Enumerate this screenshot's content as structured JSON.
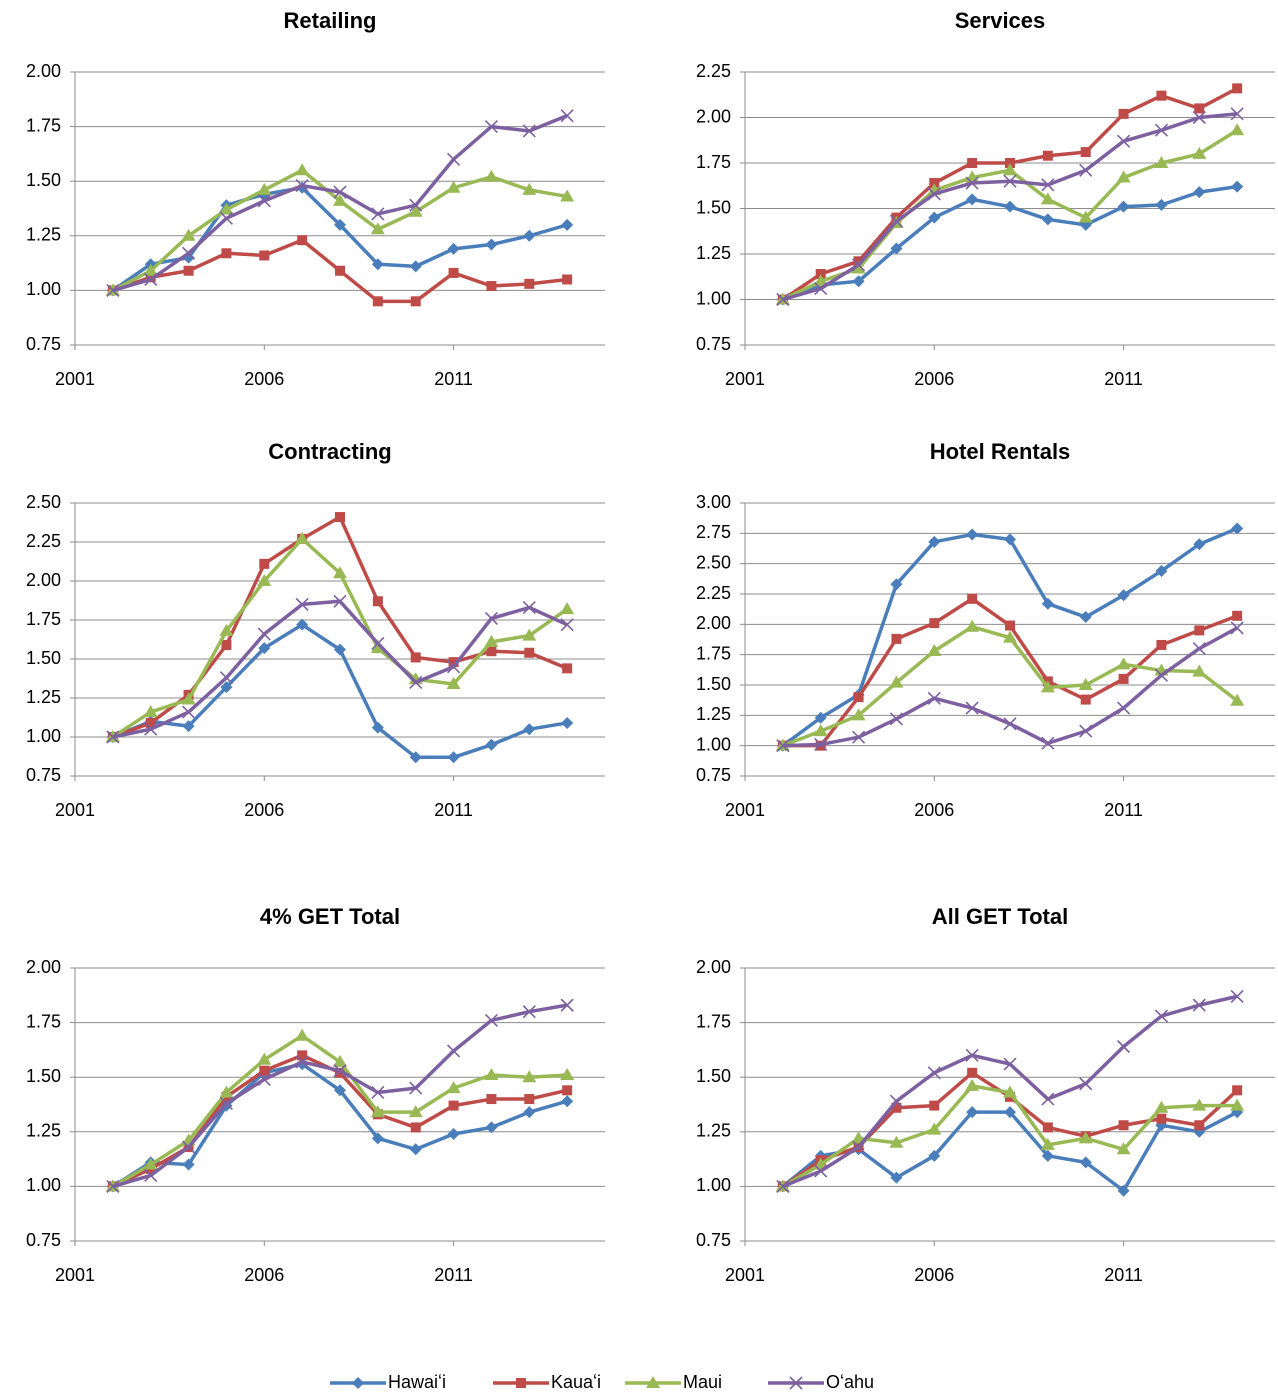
{
  "legend": [
    {
      "name": "Hawaiʻi",
      "color": "#4a7ebb",
      "marker": "diamond"
    },
    {
      "name": "Kauaʻi",
      "color": "#be4b48",
      "marker": "square"
    },
    {
      "name": "Maui",
      "color": "#98b954",
      "marker": "triangle"
    },
    {
      "name": "Oʻahu",
      "color": "#7d60a0",
      "marker": "x"
    }
  ],
  "chart_data": [
    {
      "type": "line",
      "title": "Retailing",
      "x": [
        2002,
        2003,
        2004,
        2005,
        2006,
        2007,
        2008,
        2009,
        2010,
        2011,
        2012,
        2013,
        2014
      ],
      "xlim": [
        2001,
        2015
      ],
      "xticks": [
        2001,
        2006,
        2011
      ],
      "ylim": [
        0.75,
        2.0
      ],
      "yticks": [
        {
          "value": 0.75,
          "label": "0.75"
        },
        {
          "value": 1.0,
          "label": "1.00"
        },
        {
          "value": 1.25,
          "label": "1.25"
        },
        {
          "value": 1.5,
          "label": "1.50"
        },
        {
          "value": 1.75,
          "label": "1.75"
        },
        {
          "value": 2.0,
          "label": "2.00"
        }
      ],
      "grid": true,
      "series": [
        {
          "values": [
            1.0,
            1.12,
            1.15,
            1.39,
            1.44,
            1.47,
            1.3,
            1.12,
            1.11,
            1.19,
            1.21,
            1.25,
            1.3
          ]
        },
        {
          "values": [
            1.0,
            1.06,
            1.09,
            1.17,
            1.16,
            1.23,
            1.09,
            0.95,
            0.95,
            1.08,
            1.02,
            1.03,
            1.05
          ]
        },
        {
          "values": [
            1.0,
            1.09,
            1.25,
            1.37,
            1.46,
            1.55,
            1.41,
            1.28,
            1.36,
            1.47,
            1.52,
            1.46,
            1.43
          ]
        },
        {
          "values": [
            1.0,
            1.05,
            1.17,
            1.33,
            1.41,
            1.48,
            1.45,
            1.35,
            1.39,
            1.6,
            1.75,
            1.73,
            1.8
          ]
        }
      ]
    },
    {
      "type": "line",
      "title": "Services",
      "x": [
        2002,
        2003,
        2004,
        2005,
        2006,
        2007,
        2008,
        2009,
        2010,
        2011,
        2012,
        2013,
        2014
      ],
      "xlim": [
        2001,
        2015
      ],
      "xticks": [
        2001,
        2006,
        2011
      ],
      "ylim": [
        0.75,
        2.25
      ],
      "yticks": [
        {
          "value": 0.75,
          "label": "0.75"
        },
        {
          "value": 1.0,
          "label": "1.00"
        },
        {
          "value": 1.25,
          "label": "1.25"
        },
        {
          "value": 1.5,
          "label": "1.50"
        },
        {
          "value": 1.75,
          "label": "1.75"
        },
        {
          "value": 2.0,
          "label": "2.00"
        },
        {
          "value": 2.25,
          "label": "2.25"
        }
      ],
      "grid": true,
      "series": [
        {
          "values": [
            1.0,
            1.08,
            1.1,
            1.28,
            1.45,
            1.55,
            1.51,
            1.44,
            1.41,
            1.51,
            1.52,
            1.59,
            1.62
          ]
        },
        {
          "values": [
            1.0,
            1.14,
            1.21,
            1.45,
            1.64,
            1.75,
            1.75,
            1.79,
            1.81,
            2.02,
            2.12,
            2.05,
            2.16
          ]
        },
        {
          "values": [
            1.0,
            1.1,
            1.17,
            1.42,
            1.6,
            1.67,
            1.71,
            1.55,
            1.45,
            1.67,
            1.75,
            1.8,
            1.93
          ]
        },
        {
          "values": [
            1.0,
            1.06,
            1.19,
            1.43,
            1.58,
            1.64,
            1.65,
            1.63,
            1.71,
            1.87,
            1.93,
            2.0,
            2.02
          ]
        }
      ]
    },
    {
      "type": "line",
      "title": "Contracting",
      "x": [
        2002,
        2003,
        2004,
        2005,
        2006,
        2007,
        2008,
        2009,
        2010,
        2011,
        2012,
        2013,
        2014
      ],
      "xlim": [
        2001,
        2015
      ],
      "xticks": [
        2001,
        2006,
        2011
      ],
      "ylim": [
        0.75,
        2.5
      ],
      "yticks": [
        {
          "value": 0.75,
          "label": "0.75"
        },
        {
          "value": 1.0,
          "label": "1.00"
        },
        {
          "value": 1.25,
          "label": "1.25"
        },
        {
          "value": 1.5,
          "label": "1.50"
        },
        {
          "value": 1.75,
          "label": "1.75"
        },
        {
          "value": 2.0,
          "label": "2.00"
        },
        {
          "value": 2.25,
          "label": "2.25"
        },
        {
          "value": 2.5,
          "label": "2.50"
        }
      ],
      "grid": true,
      "series": [
        {
          "values": [
            1.0,
            1.1,
            1.07,
            1.32,
            1.57,
            1.72,
            1.56,
            1.06,
            0.87,
            0.87,
            0.95,
            1.05,
            1.09
          ]
        },
        {
          "values": [
            1.0,
            1.09,
            1.27,
            1.59,
            2.11,
            2.27,
            2.41,
            1.87,
            1.51,
            1.48,
            1.55,
            1.54,
            1.44
          ]
        },
        {
          "values": [
            1.0,
            1.16,
            1.24,
            1.68,
            2.0,
            2.27,
            2.05,
            1.57,
            1.37,
            1.34,
            1.61,
            1.65,
            1.82
          ]
        },
        {
          "values": [
            1.0,
            1.05,
            1.16,
            1.38,
            1.66,
            1.85,
            1.87,
            1.6,
            1.35,
            1.45,
            1.76,
            1.83,
            1.72
          ]
        }
      ]
    },
    {
      "type": "line",
      "title": "Hotel Rentals",
      "x": [
        2002,
        2003,
        2004,
        2005,
        2006,
        2007,
        2008,
        2009,
        2010,
        2011,
        2012,
        2013,
        2014
      ],
      "xlim": [
        2001,
        2015
      ],
      "xticks": [
        2001,
        2006,
        2011
      ],
      "ylim": [
        0.75,
        3.0
      ],
      "yticks": [
        {
          "value": 0.75,
          "label": "0.75"
        },
        {
          "value": 1.0,
          "label": "1.00"
        },
        {
          "value": 1.25,
          "label": "1.25"
        },
        {
          "value": 1.5,
          "label": "1.50"
        },
        {
          "value": 1.75,
          "label": "1.75"
        },
        {
          "value": 2.0,
          "label": "2.00"
        },
        {
          "value": 2.25,
          "label": "2.25"
        },
        {
          "value": 2.5,
          "label": "2.50"
        },
        {
          "value": 2.75,
          "label": "2.75"
        },
        {
          "value": 3.0,
          "label": "3.00"
        }
      ],
      "grid": true,
      "series": [
        {
          "values": [
            1.0,
            1.23,
            1.42,
            2.33,
            2.68,
            2.74,
            2.7,
            2.17,
            2.06,
            2.24,
            2.44,
            2.66,
            2.79
          ]
        },
        {
          "values": [
            1.0,
            1.0,
            1.4,
            1.88,
            2.01,
            2.21,
            1.99,
            1.53,
            1.38,
            1.55,
            1.83,
            1.95,
            2.07
          ]
        },
        {
          "values": [
            1.0,
            1.12,
            1.25,
            1.52,
            1.78,
            1.98,
            1.89,
            1.48,
            1.5,
            1.67,
            1.62,
            1.61,
            1.37
          ]
        },
        {
          "values": [
            1.0,
            1.01,
            1.07,
            1.22,
            1.39,
            1.31,
            1.18,
            1.02,
            1.12,
            1.31,
            1.58,
            1.8,
            1.97
          ]
        }
      ]
    },
    {
      "type": "line",
      "title": "4% GET Total",
      "x": [
        2002,
        2003,
        2004,
        2005,
        2006,
        2007,
        2008,
        2009,
        2010,
        2011,
        2012,
        2013,
        2014
      ],
      "xlim": [
        2001,
        2015
      ],
      "xticks": [
        2001,
        2006,
        2011
      ],
      "ylim": [
        0.75,
        2.0
      ],
      "yticks": [
        {
          "value": 0.75,
          "label": "0.75"
        },
        {
          "value": 1.0,
          "label": "1.00"
        },
        {
          "value": 1.25,
          "label": "1.25"
        },
        {
          "value": 1.5,
          "label": "1.50"
        },
        {
          "value": 1.75,
          "label": "1.75"
        },
        {
          "value": 2.0,
          "label": "2.00"
        }
      ],
      "grid": true,
      "series": [
        {
          "values": [
            1.0,
            1.11,
            1.1,
            1.37,
            1.52,
            1.56,
            1.44,
            1.22,
            1.17,
            1.24,
            1.27,
            1.34,
            1.39
          ]
        },
        {
          "values": [
            1.0,
            1.08,
            1.18,
            1.41,
            1.53,
            1.6,
            1.52,
            1.33,
            1.27,
            1.37,
            1.4,
            1.4,
            1.44
          ]
        },
        {
          "values": [
            1.0,
            1.1,
            1.21,
            1.43,
            1.58,
            1.69,
            1.57,
            1.34,
            1.34,
            1.45,
            1.51,
            1.5,
            1.51
          ]
        },
        {
          "values": [
            1.0,
            1.05,
            1.18,
            1.38,
            1.49,
            1.57,
            1.53,
            1.43,
            1.45,
            1.62,
            1.76,
            1.8,
            1.83
          ]
        }
      ]
    },
    {
      "type": "line",
      "title": "All GET Total",
      "x": [
        2002,
        2003,
        2004,
        2005,
        2006,
        2007,
        2008,
        2009,
        2010,
        2011,
        2012,
        2013,
        2014
      ],
      "xlim": [
        2001,
        2015
      ],
      "xticks": [
        2001,
        2006,
        2011
      ],
      "ylim": [
        0.75,
        2.0
      ],
      "yticks": [
        {
          "value": 0.75,
          "label": "0.75"
        },
        {
          "value": 1.0,
          "label": "1.00"
        },
        {
          "value": 1.25,
          "label": "1.25"
        },
        {
          "value": 1.5,
          "label": "1.50"
        },
        {
          "value": 1.75,
          "label": "1.75"
        },
        {
          "value": 2.0,
          "label": "2.00"
        }
      ],
      "grid": true,
      "series": [
        {
          "values": [
            1.0,
            1.14,
            1.17,
            1.04,
            1.14,
            1.34,
            1.34,
            1.14,
            1.11,
            0.98,
            1.28,
            1.25,
            1.34
          ]
        },
        {
          "values": [
            1.0,
            1.12,
            1.18,
            1.36,
            1.37,
            1.52,
            1.41,
            1.27,
            1.23,
            1.28,
            1.31,
            1.28,
            1.44
          ]
        },
        {
          "values": [
            1.0,
            1.1,
            1.22,
            1.2,
            1.26,
            1.46,
            1.43,
            1.19,
            1.22,
            1.17,
            1.36,
            1.37,
            1.37
          ]
        },
        {
          "values": [
            1.0,
            1.07,
            1.18,
            1.39,
            1.52,
            1.6,
            1.56,
            1.4,
            1.47,
            1.64,
            1.78,
            1.83,
            1.87
          ]
        }
      ]
    }
  ]
}
